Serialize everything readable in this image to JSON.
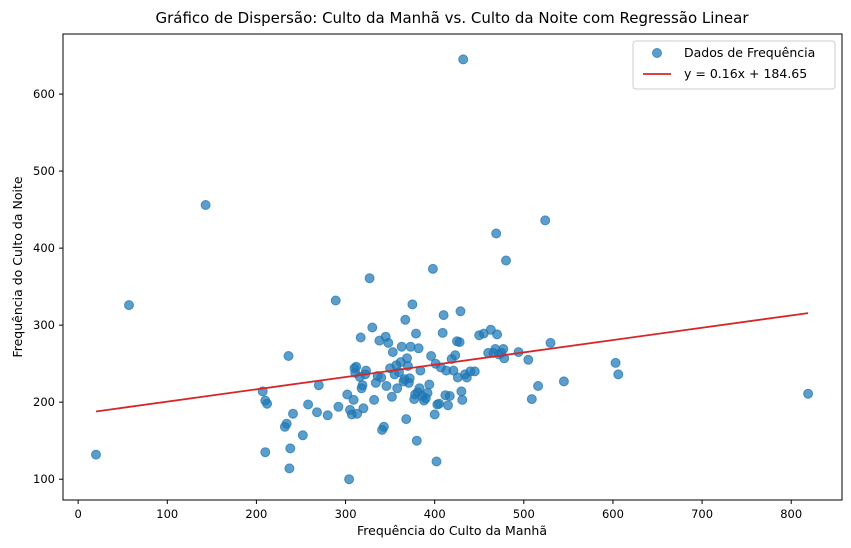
{
  "chart_data": {
    "type": "scatter",
    "title": "Gráfico de Dispersão: Culto da Manhã vs. Culto da Noite com Regressão Linear",
    "xlabel": "Frequência do Culto da Manhã",
    "ylabel": "Frequência do Culto da Noite",
    "xlim": [
      -17,
      857
    ],
    "ylim": [
      73,
      678
    ],
    "xticks": [
      0,
      100,
      200,
      300,
      400,
      500,
      600,
      700,
      800
    ],
    "yticks": [
      100,
      200,
      300,
      400,
      500,
      600
    ],
    "grid": false,
    "legend_position": "top-right",
    "series": [
      {
        "name": "Dados de Frequência",
        "kind": "scatter",
        "color": "#1f77b4",
        "points": [
          [
            20,
            132
          ],
          [
            57,
            326
          ],
          [
            143,
            456
          ],
          [
            207,
            214
          ],
          [
            210,
            135
          ],
          [
            210,
            202
          ],
          [
            212,
            198
          ],
          [
            232,
            168
          ],
          [
            234,
            172
          ],
          [
            236,
            260
          ],
          [
            237,
            114
          ],
          [
            238,
            140
          ],
          [
            241,
            185
          ],
          [
            252,
            157
          ],
          [
            258,
            197
          ],
          [
            268,
            187
          ],
          [
            270,
            222
          ],
          [
            280,
            183
          ],
          [
            289,
            332
          ],
          [
            292,
            194
          ],
          [
            302,
            210
          ],
          [
            304,
            100
          ],
          [
            305,
            190
          ],
          [
            307,
            184
          ],
          [
            309,
            203
          ],
          [
            310,
            244
          ],
          [
            311,
            238
          ],
          [
            312,
            246
          ],
          [
            313,
            185
          ],
          [
            316,
            233
          ],
          [
            317,
            284
          ],
          [
            318,
            218
          ],
          [
            319,
            222
          ],
          [
            320,
            192
          ],
          [
            322,
            236
          ],
          [
            323,
            241
          ],
          [
            327,
            361
          ],
          [
            330,
            297
          ],
          [
            332,
            203
          ],
          [
            334,
            225
          ],
          [
            336,
            234
          ],
          [
            338,
            280
          ],
          [
            340,
            232
          ],
          [
            341,
            164
          ],
          [
            343,
            168
          ],
          [
            345,
            285
          ],
          [
            346,
            221
          ],
          [
            348,
            277
          ],
          [
            350,
            244
          ],
          [
            352,
            207
          ],
          [
            353,
            265
          ],
          [
            355,
            236
          ],
          [
            357,
            248
          ],
          [
            358,
            218
          ],
          [
            360,
            239
          ],
          [
            362,
            252
          ],
          [
            363,
            272
          ],
          [
            365,
            227
          ],
          [
            366,
            230
          ],
          [
            367,
            307
          ],
          [
            368,
            178
          ],
          [
            369,
            257
          ],
          [
            370,
            247
          ],
          [
            371,
            225
          ],
          [
            372,
            231
          ],
          [
            373,
            272
          ],
          [
            375,
            327
          ],
          [
            377,
            204
          ],
          [
            378,
            210
          ],
          [
            379,
            289
          ],
          [
            380,
            150
          ],
          [
            381,
            213
          ],
          [
            382,
            270
          ],
          [
            383,
            218
          ],
          [
            384,
            241
          ],
          [
            386,
            208
          ],
          [
            388,
            202
          ],
          [
            390,
            205
          ],
          [
            392,
            212
          ],
          [
            394,
            223
          ],
          [
            396,
            260
          ],
          [
            398,
            373
          ],
          [
            400,
            184
          ],
          [
            401,
            250
          ],
          [
            402,
            123
          ],
          [
            403,
            197
          ],
          [
            405,
            198
          ],
          [
            407,
            245
          ],
          [
            409,
            290
          ],
          [
            410,
            313
          ],
          [
            412,
            209
          ],
          [
            413,
            241
          ],
          [
            415,
            196
          ],
          [
            417,
            208
          ],
          [
            419,
            256
          ],
          [
            421,
            241
          ],
          [
            423,
            261
          ],
          [
            425,
            279
          ],
          [
            426,
            232
          ],
          [
            428,
            278
          ],
          [
            429,
            318
          ],
          [
            430,
            214
          ],
          [
            431,
            203
          ],
          [
            432,
            645
          ],
          [
            434,
            236
          ],
          [
            436,
            232
          ],
          [
            440,
            240
          ],
          [
            445,
            240
          ],
          [
            450,
            287
          ],
          [
            455,
            289
          ],
          [
            460,
            264
          ],
          [
            463,
            294
          ],
          [
            466,
            264
          ],
          [
            468,
            269
          ],
          [
            469,
            419
          ],
          [
            470,
            288
          ],
          [
            472,
            262
          ],
          [
            475,
            264
          ],
          [
            477,
            269
          ],
          [
            478,
            257
          ],
          [
            480,
            384
          ],
          [
            494,
            265
          ],
          [
            505,
            255
          ],
          [
            509,
            204
          ],
          [
            516,
            221
          ],
          [
            524,
            436
          ],
          [
            530,
            277
          ],
          [
            545,
            227
          ],
          [
            603,
            251
          ],
          [
            606,
            236
          ],
          [
            819,
            211
          ]
        ]
      },
      {
        "name": "y = 0.16x + 184.65",
        "kind": "line",
        "color": "#d62728",
        "slope": 0.16,
        "intercept": 184.65,
        "x_range": [
          20,
          819
        ]
      }
    ]
  }
}
